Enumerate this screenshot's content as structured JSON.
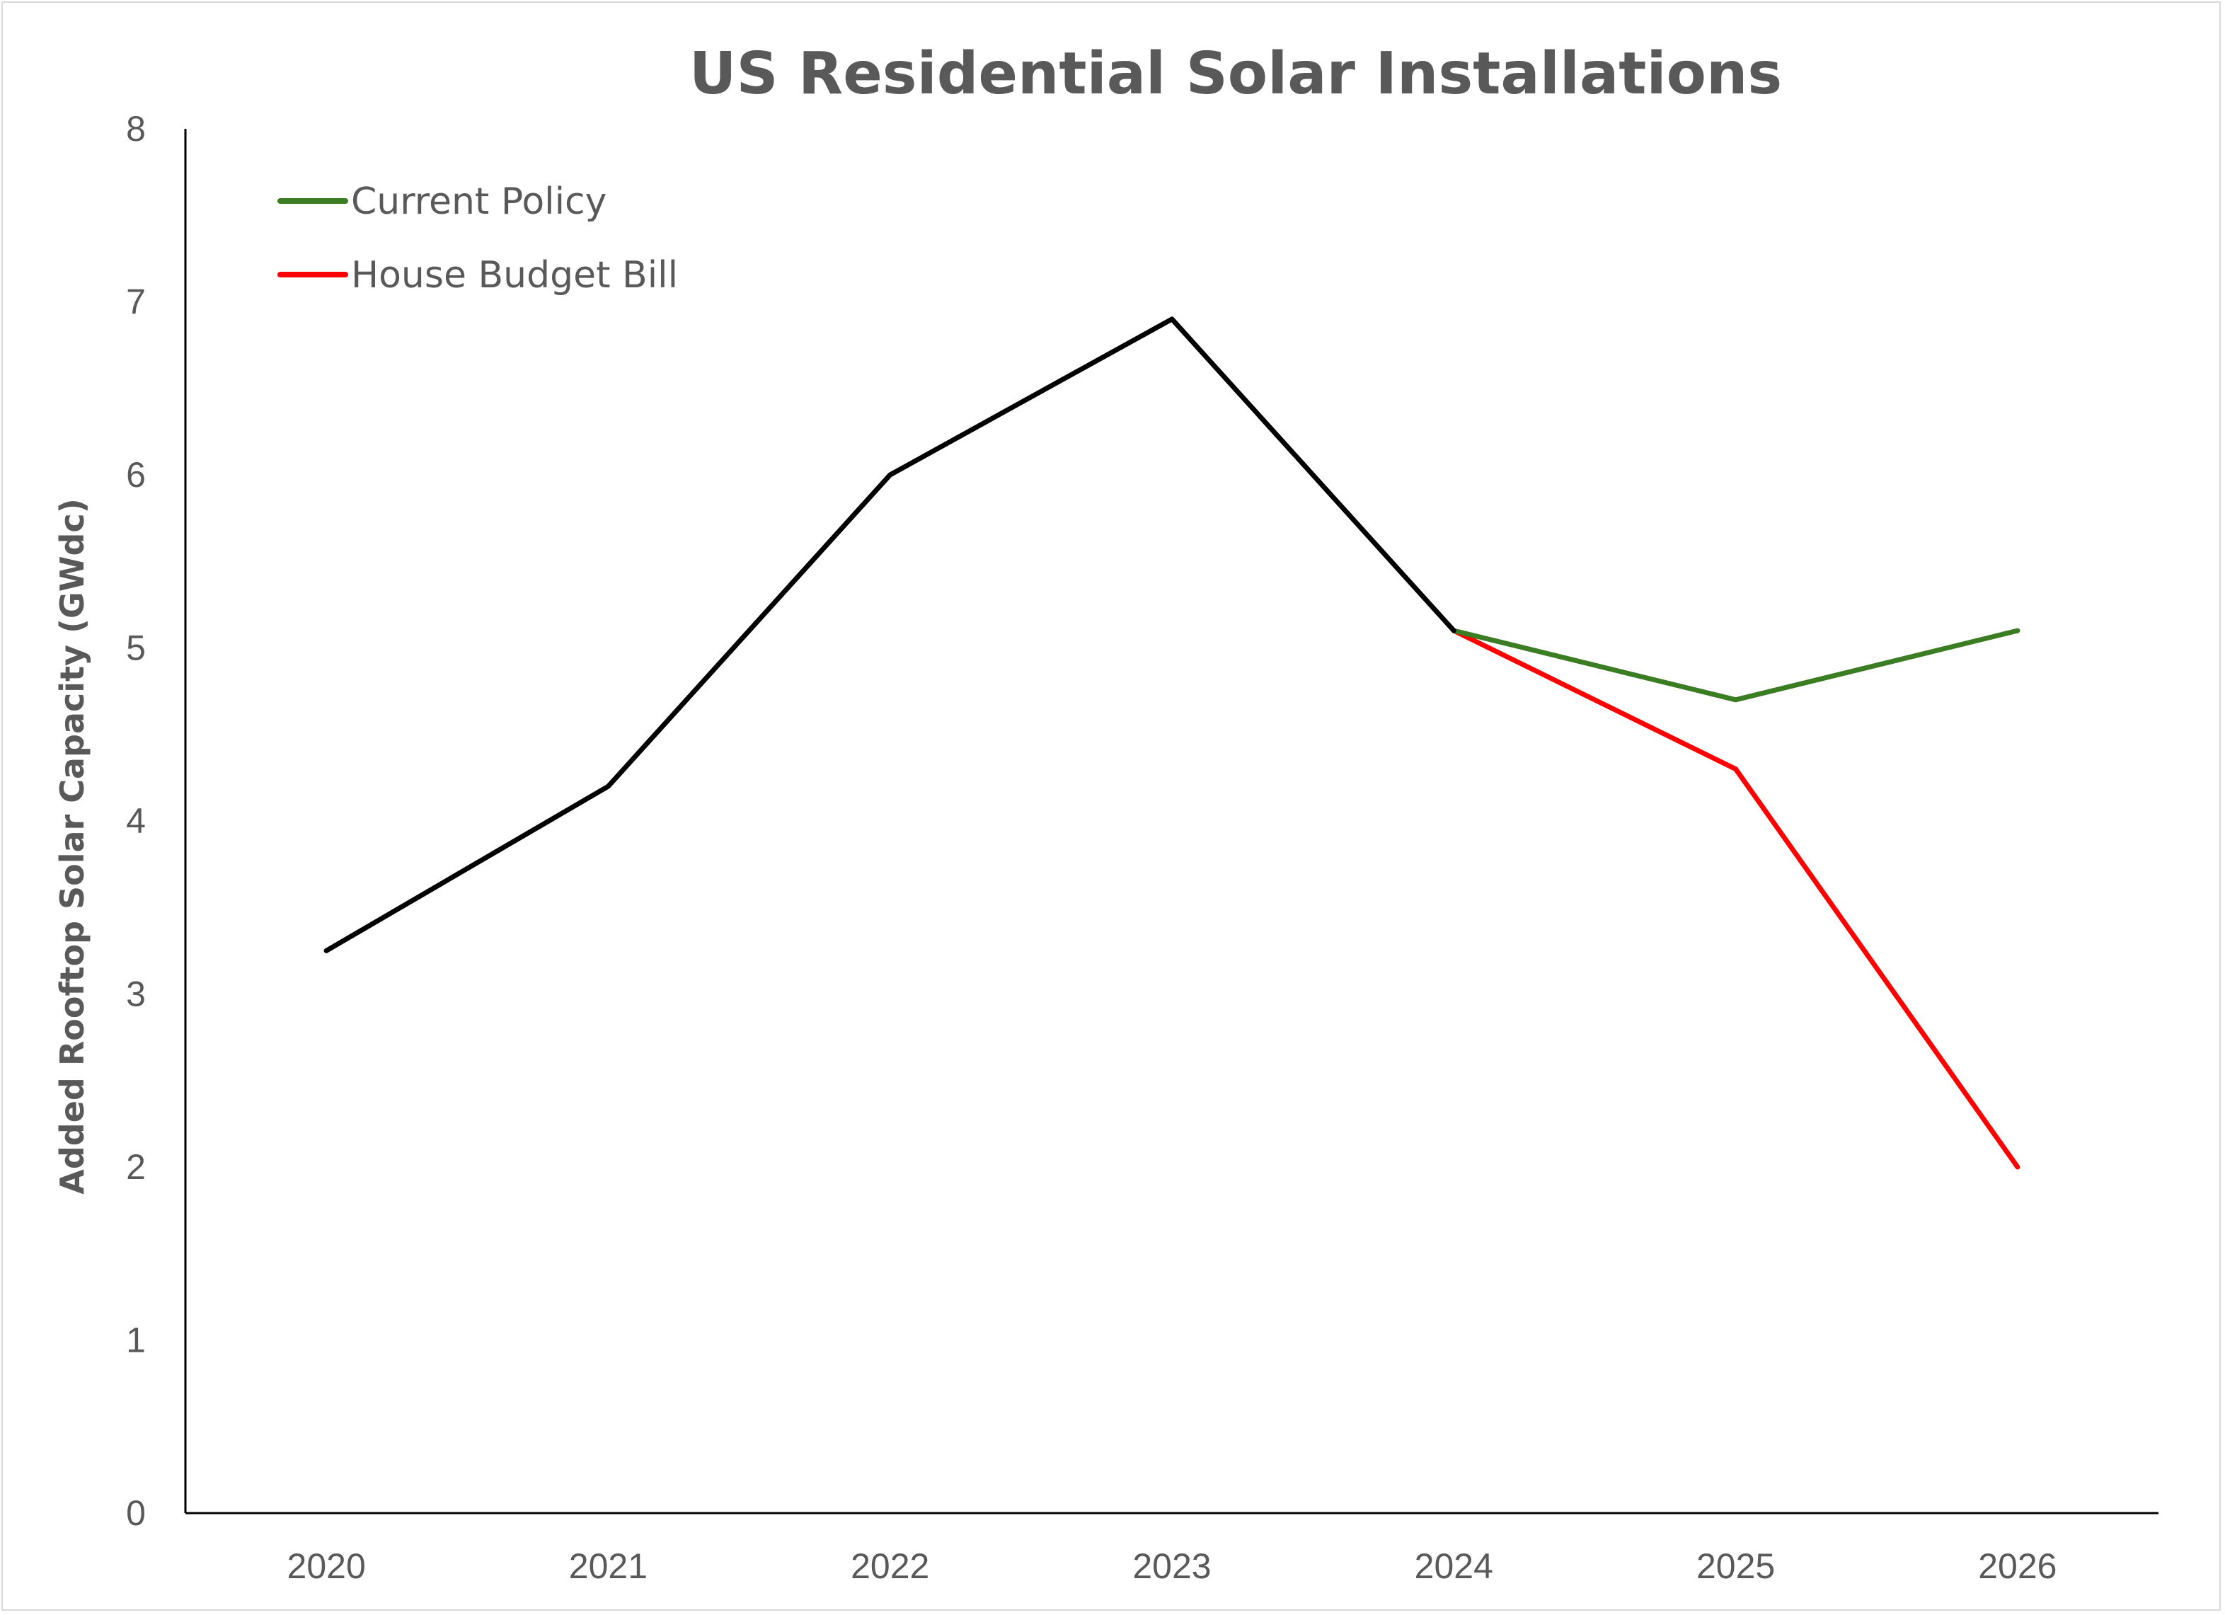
{
  "chart_data": {
    "type": "line",
    "title": "US Residential Solar Installations",
    "xlabel": "",
    "ylabel": "Added Rooftop Solar  Capacity (GWdc)",
    "categories": [
      "2020",
      "2021",
      "2022",
      "2023",
      "2024",
      "2025",
      "2026"
    ],
    "ylim": [
      0,
      8
    ],
    "yticks": [
      "0",
      "1",
      "2",
      "3",
      "4",
      "5",
      "6",
      "7",
      "8"
    ],
    "grid": false,
    "legend_position": "top-left",
    "series": [
      {
        "values": [
          3.25,
          4.2,
          6.0,
          6.9,
          5.1,
          null,
          null
        ],
        "color": "#000000"
      },
      {
        "name": "Current Policy",
        "values": [
          null,
          null,
          null,
          null,
          5.1,
          4.7,
          5.1
        ],
        "color": "#3a7d22"
      },
      {
        "name": "House Budget Bill",
        "values": [
          null,
          null,
          null,
          null,
          5.1,
          4.3,
          2.0
        ],
        "color": "#ff0000"
      }
    ]
  }
}
